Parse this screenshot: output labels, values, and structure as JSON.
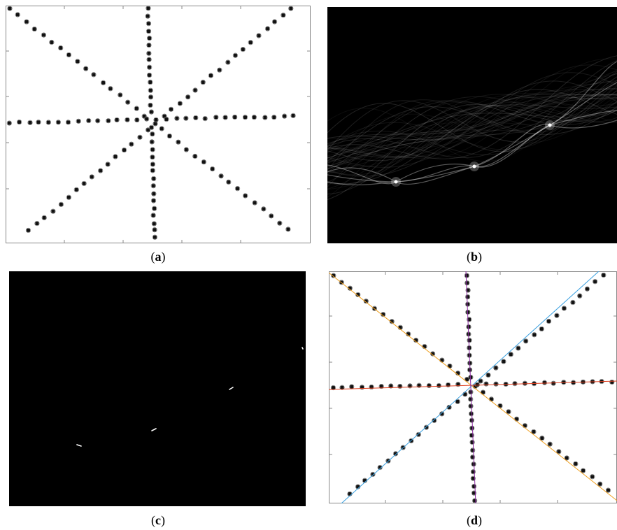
{
  "figure": {
    "panels": [
      {
        "id": "a",
        "caption": "a",
        "kind": "scatter-points"
      },
      {
        "id": "b",
        "caption": "b",
        "kind": "hough-accumulator"
      },
      {
        "id": "c",
        "caption": "c",
        "kind": "thresholded-peaks"
      },
      {
        "id": "d",
        "caption": "d",
        "kind": "fitted-lines"
      }
    ]
  },
  "colors": {
    "background_dark": "#000000",
    "background_light": "#ffffff",
    "frame": "#888888",
    "line_orange": "#f0a020",
    "line_blue": "#3aa0e0",
    "line_red": "#e04020",
    "line_purple": "#8a2aa0"
  }
}
